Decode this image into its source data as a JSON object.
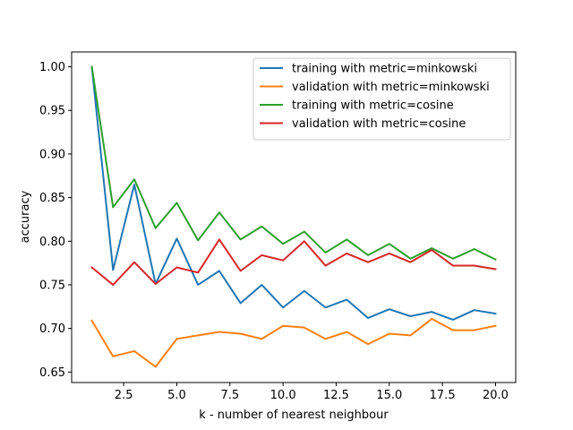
{
  "chart_data": {
    "type": "line",
    "title": "",
    "xlabel": "k - number of nearest neighbour",
    "ylabel": "accuracy",
    "xlim": [
      0.05,
      20.95
    ],
    "ylim": [
      0.638,
      1.017
    ],
    "xticks": [
      2.5,
      5.0,
      7.5,
      10.0,
      12.5,
      15.0,
      17.5,
      20.0
    ],
    "xtick_labels": [
      "2.5",
      "5.0",
      "7.5",
      "10.0",
      "12.5",
      "15.0",
      "17.5",
      "20.0"
    ],
    "yticks": [
      0.65,
      0.7,
      0.75,
      0.8,
      0.85,
      0.9,
      0.95,
      1.0
    ],
    "ytick_labels": [
      "0.65",
      "0.70",
      "0.75",
      "0.80",
      "0.85",
      "0.90",
      "0.95",
      "1.00"
    ],
    "grid": false,
    "legend_position": "top-right",
    "x": [
      1,
      2,
      3,
      4,
      5,
      6,
      7,
      8,
      9,
      10,
      11,
      12,
      13,
      14,
      15,
      16,
      17,
      18,
      19,
      20
    ],
    "series": [
      {
        "name": "training with metric=minkowski",
        "color": "#1f77b4",
        "values": [
          1.0,
          0.767,
          0.865,
          0.751,
          0.803,
          0.75,
          0.766,
          0.729,
          0.75,
          0.724,
          0.743,
          0.724,
          0.733,
          0.712,
          0.722,
          0.714,
          0.719,
          0.71,
          0.721,
          0.717
        ]
      },
      {
        "name": "validation with metric=minkowski",
        "color": "#ff7f0e",
        "values": [
          0.709,
          0.668,
          0.674,
          0.656,
          0.688,
          0.692,
          0.696,
          0.694,
          0.688,
          0.703,
          0.701,
          0.688,
          0.696,
          0.682,
          0.694,
          0.692,
          0.711,
          0.698,
          0.698,
          0.703
        ]
      },
      {
        "name": "training with metric=cosine",
        "color": "#2ca02c",
        "values": [
          1.0,
          0.839,
          0.871,
          0.815,
          0.844,
          0.801,
          0.833,
          0.802,
          0.817,
          0.797,
          0.811,
          0.787,
          0.802,
          0.784,
          0.797,
          0.78,
          0.792,
          0.78,
          0.791,
          0.779
        ]
      },
      {
        "name": "validation with metric=cosine",
        "color": "#d62728",
        "values": [
          0.77,
          0.75,
          0.776,
          0.751,
          0.77,
          0.764,
          0.802,
          0.766,
          0.784,
          0.778,
          0.8,
          0.772,
          0.786,
          0.776,
          0.786,
          0.776,
          0.79,
          0.772,
          0.772,
          0.768
        ]
      }
    ]
  }
}
